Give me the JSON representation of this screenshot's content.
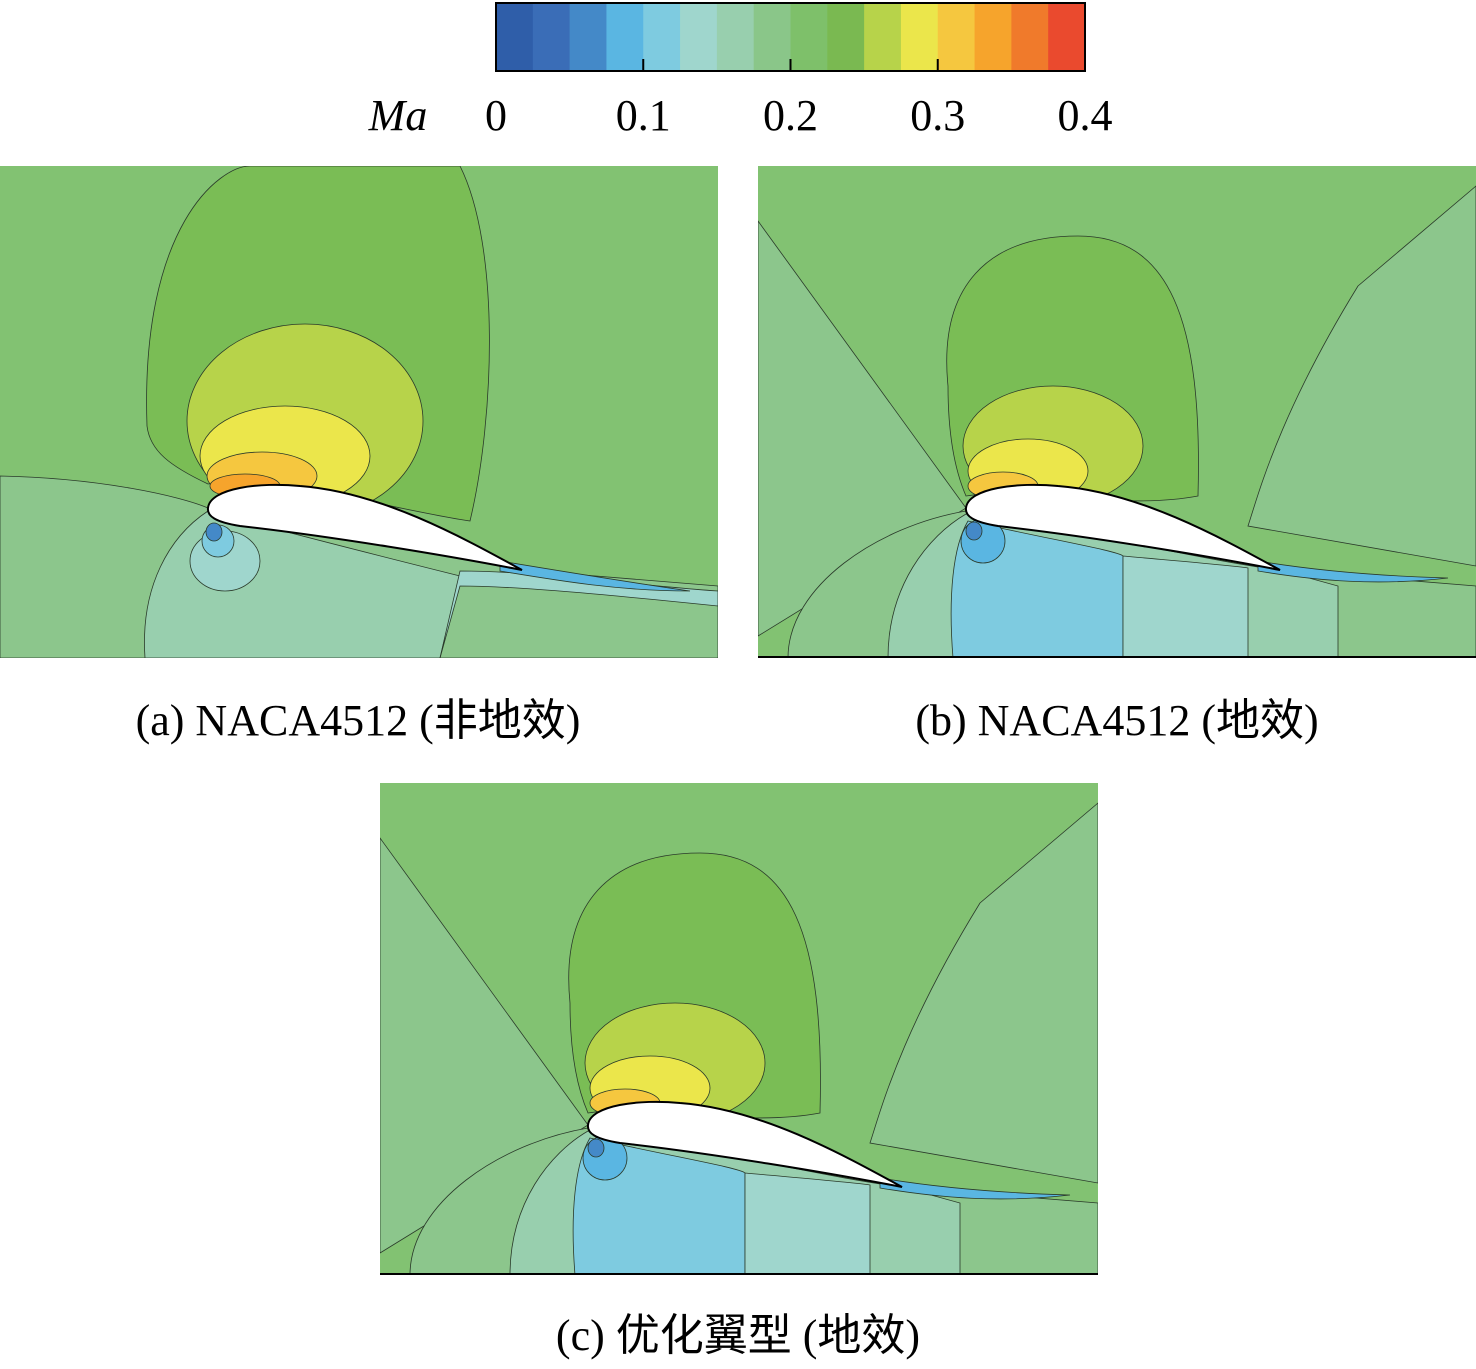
{
  "colorbar": {
    "label": "Ma",
    "lim": [
      0,
      0.4
    ],
    "ticks": [
      0,
      0.1,
      0.2,
      0.3,
      0.4
    ],
    "colors": [
      "#2f5ea9",
      "#3a6db7",
      "#4489c8",
      "#5ab6e2",
      "#7ecbe0",
      "#9fd6cd",
      "#98cfae",
      "#8ac689",
      "#7ec06a",
      "#7ab951",
      "#b7d34a",
      "#ebe64b",
      "#f5c73f",
      "#f6a42c",
      "#f07a2b",
      "#ea4a2e"
    ]
  },
  "panels": [
    {
      "caption": "(a) NACA4512 (非地效)"
    },
    {
      "caption": "(b) NACA4512 (地效)"
    },
    {
      "caption": "(c) 优化翼型 (地效)"
    }
  ]
}
